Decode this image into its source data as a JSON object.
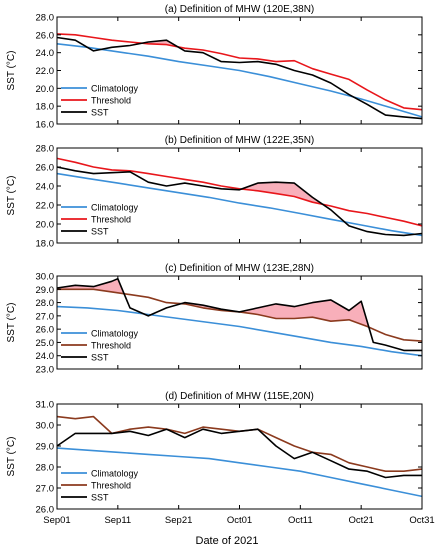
{
  "xlabel": "Date of 2021",
  "xticks": [
    "Sep01",
    "Sep11",
    "Sep21",
    "Oct01",
    "Oct11",
    "Oct21",
    "Oct31"
  ],
  "colors": {
    "climatology": "#3b8fd8",
    "threshold_red": "#e8161b",
    "threshold_brown": "#8b3a1e",
    "sst": "#000000",
    "fill": "#f7a6b2"
  },
  "chart_data": [
    {
      "type": "line",
      "title": "(a) Definition of MHW (120E,38N)",
      "ylabel": "SST (°C)",
      "ylim": [
        16.0,
        28.0
      ],
      "yticks": [
        "16.0",
        "18.0",
        "20.0",
        "22.0",
        "24.0",
        "26.0",
        "28.0"
      ],
      "threshold_color": "threshold_red",
      "legend": [
        "Climatology",
        "Threshold",
        "SST"
      ],
      "series": [
        {
          "name": "Climatology",
          "color_key": "climatology",
          "x": [
            0,
            5,
            10,
            15,
            20,
            25,
            30,
            35,
            40,
            45,
            50,
            55,
            60
          ],
          "y": [
            25.0,
            24.6,
            24.1,
            23.6,
            23.0,
            22.5,
            22.0,
            21.3,
            20.5,
            19.7,
            18.8,
            17.8,
            16.8
          ]
        },
        {
          "name": "Threshold",
          "color_key": "threshold_red",
          "x": [
            0,
            3,
            6,
            9,
            12,
            15,
            18,
            21,
            24,
            27,
            30,
            33,
            36,
            39,
            42,
            45,
            48,
            51,
            54,
            57,
            60
          ],
          "y": [
            26.1,
            26.0,
            25.7,
            25.4,
            25.2,
            25.0,
            24.9,
            24.5,
            24.3,
            23.9,
            23.4,
            23.3,
            23.0,
            23.1,
            22.2,
            21.6,
            21.0,
            19.8,
            18.7,
            17.8,
            17.6
          ]
        },
        {
          "name": "SST",
          "color_key": "sst",
          "x": [
            0,
            3,
            6,
            9,
            12,
            15,
            18,
            21,
            24,
            27,
            30,
            33,
            36,
            39,
            42,
            45,
            48,
            51,
            54,
            57,
            60
          ],
          "y": [
            25.7,
            25.4,
            24.2,
            24.6,
            24.8,
            25.2,
            25.4,
            24.2,
            24.0,
            23.0,
            22.9,
            23.0,
            22.7,
            22.0,
            21.5,
            20.6,
            19.3,
            18.2,
            17.0,
            16.8,
            16.6
          ]
        }
      ]
    },
    {
      "type": "line",
      "title": "(b) Definition of MHW (122E,35N)",
      "ylabel": "SST (°C)",
      "ylim": [
        18.0,
        28.0
      ],
      "yticks": [
        "18.0",
        "20.0",
        "22.0",
        "24.0",
        "26.0",
        "28.0"
      ],
      "threshold_color": "threshold_red",
      "legend": [
        "Climatology",
        "Threshold",
        "SST"
      ],
      "series": [
        {
          "name": "Climatology",
          "color_key": "climatology",
          "x": [
            0,
            5,
            10,
            15,
            20,
            25,
            30,
            35,
            40,
            45,
            50,
            55,
            60
          ],
          "y": [
            25.3,
            24.8,
            24.3,
            23.8,
            23.3,
            22.8,
            22.2,
            21.7,
            21.1,
            20.5,
            19.9,
            19.3,
            18.8
          ]
        },
        {
          "name": "Threshold",
          "color_key": "threshold_red",
          "x": [
            0,
            3,
            6,
            9,
            12,
            15,
            18,
            21,
            24,
            27,
            30,
            33,
            36,
            39,
            42,
            45,
            48,
            51,
            54,
            57,
            60
          ],
          "y": [
            26.9,
            26.5,
            26.0,
            25.7,
            25.6,
            25.3,
            25.0,
            24.7,
            24.4,
            24.0,
            23.7,
            23.5,
            23.2,
            22.9,
            22.3,
            21.9,
            21.4,
            21.1,
            20.7,
            20.3,
            19.8
          ]
        },
        {
          "name": "SST",
          "color_key": "sst",
          "x": [
            0,
            3,
            6,
            9,
            12,
            15,
            18,
            21,
            24,
            27,
            30,
            33,
            36,
            39,
            42,
            45,
            48,
            51,
            54,
            57,
            60
          ],
          "y": [
            26.0,
            25.6,
            25.3,
            25.4,
            25.5,
            24.4,
            24.0,
            24.3,
            24.0,
            23.7,
            23.6,
            24.3,
            24.4,
            24.3,
            22.8,
            21.5,
            19.8,
            19.2,
            18.9,
            18.8,
            19.0
          ]
        }
      ]
    },
    {
      "type": "line",
      "title": "(c) Definition of MHW (123E,28N)",
      "ylabel": "SST (°C)",
      "ylim": [
        23.0,
        30.0
      ],
      "yticks": [
        "23.0",
        "24.0",
        "25.0",
        "26.0",
        "27.0",
        "28.0",
        "29.0",
        "30.0"
      ],
      "threshold_color": "threshold_brown",
      "legend": [
        "Climatology",
        "Threshold",
        "SST"
      ],
      "series": [
        {
          "name": "Climatology",
          "color_key": "climatology",
          "x": [
            0,
            5,
            10,
            15,
            20,
            25,
            30,
            35,
            40,
            45,
            50,
            55,
            60
          ],
          "y": [
            27.7,
            27.6,
            27.4,
            27.1,
            26.8,
            26.5,
            26.2,
            25.8,
            25.4,
            25.0,
            24.7,
            24.3,
            24.0
          ]
        },
        {
          "name": "Threshold",
          "color_key": "threshold_brown",
          "x": [
            0,
            3,
            6,
            9,
            12,
            15,
            18,
            21,
            24,
            27,
            30,
            33,
            36,
            39,
            42,
            45,
            48,
            51,
            54,
            57,
            60
          ],
          "y": [
            29.0,
            29.0,
            29.0,
            28.8,
            28.6,
            28.4,
            28.0,
            27.9,
            27.6,
            27.4,
            27.3,
            27.1,
            26.8,
            26.8,
            26.9,
            26.6,
            26.7,
            26.2,
            25.6,
            25.2,
            25.1
          ]
        },
        {
          "name": "SST",
          "color_key": "sst",
          "x": [
            0,
            3,
            6,
            9,
            10,
            12,
            15,
            18,
            21,
            24,
            27,
            30,
            33,
            36,
            39,
            42,
            45,
            48,
            50,
            52,
            54,
            57,
            60
          ],
          "y": [
            29.1,
            29.3,
            29.2,
            29.6,
            29.8,
            27.6,
            27.0,
            27.6,
            28.0,
            27.8,
            27.5,
            27.3,
            27.6,
            27.9,
            27.7,
            28.0,
            28.2,
            27.4,
            28.1,
            25.0,
            24.8,
            24.4,
            24.4
          ]
        }
      ]
    },
    {
      "type": "line",
      "title": "(d) Definition of MHW (115E,20N)",
      "ylabel": "SST (°C)",
      "ylim": [
        26.0,
        31.0
      ],
      "yticks": [
        "26.0",
        "27.0",
        "28.0",
        "29.0",
        "30.0",
        "31.0"
      ],
      "threshold_color": "threshold_brown",
      "legend": [
        "Climatology",
        "Threshold",
        "SST"
      ],
      "series": [
        {
          "name": "Climatology",
          "color_key": "climatology",
          "x": [
            0,
            5,
            10,
            15,
            20,
            25,
            30,
            35,
            40,
            45,
            50,
            55,
            60
          ],
          "y": [
            28.9,
            28.8,
            28.7,
            28.6,
            28.5,
            28.4,
            28.2,
            28.0,
            27.8,
            27.5,
            27.2,
            26.9,
            26.6
          ]
        },
        {
          "name": "Threshold",
          "color_key": "threshold_brown",
          "x": [
            0,
            3,
            6,
            9,
            12,
            15,
            18,
            21,
            24,
            27,
            30,
            33,
            36,
            39,
            42,
            45,
            48,
            51,
            54,
            57,
            60
          ],
          "y": [
            30.4,
            30.3,
            30.4,
            29.6,
            29.8,
            29.9,
            29.8,
            29.6,
            29.9,
            29.8,
            29.7,
            29.8,
            29.4,
            29.0,
            28.7,
            28.6,
            28.2,
            28.0,
            27.8,
            27.8,
            27.9
          ]
        },
        {
          "name": "SST",
          "color_key": "sst",
          "x": [
            0,
            3,
            6,
            9,
            12,
            15,
            18,
            21,
            24,
            27,
            30,
            33,
            36,
            39,
            42,
            45,
            48,
            51,
            54,
            57,
            60
          ],
          "y": [
            29.0,
            29.6,
            29.6,
            29.6,
            29.7,
            29.5,
            29.8,
            29.4,
            29.8,
            29.6,
            29.7,
            29.8,
            29.0,
            28.4,
            28.7,
            28.3,
            27.9,
            27.8,
            27.5,
            27.6,
            27.6
          ]
        }
      ]
    }
  ]
}
